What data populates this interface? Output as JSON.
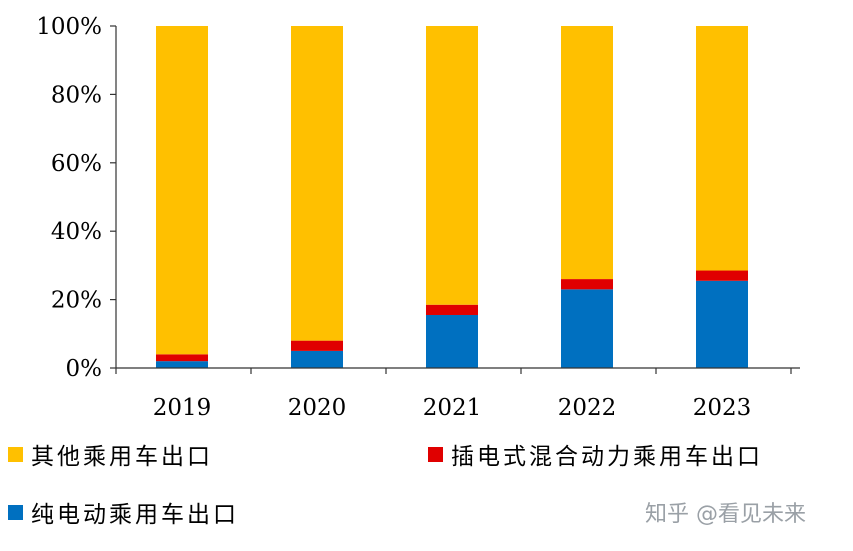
{
  "chart_data": {
    "type": "bar",
    "stacked": true,
    "categories": [
      "2019",
      "2020",
      "2021",
      "2022",
      "2023"
    ],
    "series": [
      {
        "name": "纯电动乘用车出口",
        "color": "#0070C0",
        "values": [
          2,
          5,
          15.5,
          23,
          25.5
        ]
      },
      {
        "name": "插电式混合动力乘用车出口",
        "color": "#E00000",
        "values": [
          2,
          3,
          3,
          3,
          3
        ]
      },
      {
        "name": "其他乘用车出口",
        "color": "#FFC000",
        "values": [
          96,
          92,
          81.5,
          74,
          71.5
        ]
      }
    ],
    "yticks": [
      "0%",
      "20%",
      "40%",
      "60%",
      "80%",
      "100%"
    ],
    "ylim": [
      0,
      100
    ],
    "grid": false,
    "legend_position": "bottom"
  },
  "watermark": "知乎 @看见未来"
}
